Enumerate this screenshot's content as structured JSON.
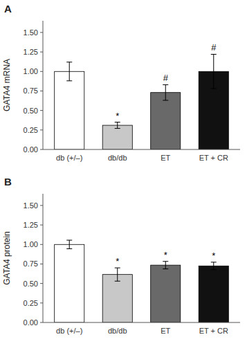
{
  "chart_data": [
    {
      "type": "bar",
      "title": "A",
      "ylabel": "GATA4 mRNA",
      "categories": [
        "db (+/–)",
        "db/db",
        "ET",
        "ET + CR"
      ],
      "values": [
        1.0,
        0.31,
        0.73,
        1.0
      ],
      "errors": [
        0.12,
        0.04,
        0.1,
        0.22
      ],
      "colors": [
        "#ffffff",
        "#c8c8c8",
        "#696969",
        "#111111"
      ],
      "significance": [
        null,
        "*",
        "#",
        "#"
      ],
      "ylim": [
        0,
        1.65
      ],
      "yticks": [
        {
          "value": 0.0,
          "label": "0.00"
        },
        {
          "value": 0.25,
          "label": "0.25"
        },
        {
          "value": 0.5,
          "label": "0.50"
        },
        {
          "value": 0.75,
          "label": "0.75"
        },
        {
          "value": 1.0,
          "label": "1.00"
        },
        {
          "value": 1.25,
          "label": "1.25"
        },
        {
          "value": 1.5,
          "label": "1.50"
        }
      ],
      "grid": false
    },
    {
      "type": "bar",
      "title": "B",
      "ylabel": "GATA4 protein",
      "categories": [
        "db (+/–)",
        "db/db",
        "ET",
        "ET + CR"
      ],
      "values": [
        1.0,
        0.615,
        0.735,
        0.725
      ],
      "errors": [
        0.055,
        0.085,
        0.048,
        0.048
      ],
      "colors": [
        "#ffffff",
        "#c8c8c8",
        "#696969",
        "#111111"
      ],
      "significance": [
        null,
        "*",
        "*",
        "*"
      ],
      "ylim": [
        0,
        1.65
      ],
      "yticks": [
        {
          "value": 0.0,
          "label": "0.00"
        },
        {
          "value": 0.25,
          "label": "0.25"
        },
        {
          "value": 0.5,
          "label": "0.50"
        },
        {
          "value": 0.75,
          "label": "0.75"
        },
        {
          "value": 1.0,
          "label": "1.00"
        },
        {
          "value": 1.25,
          "label": "1.25"
        },
        {
          "value": 1.5,
          "label": "1.50"
        }
      ],
      "grid": false
    }
  ]
}
